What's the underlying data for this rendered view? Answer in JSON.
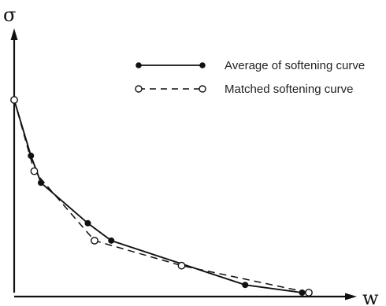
{
  "chart_data": {
    "type": "line",
    "title": "",
    "xlabel": "w",
    "ylabel": "σ",
    "xlim": [
      0,
      100
    ],
    "ylim": [
      0,
      100
    ],
    "grid": false,
    "legend_position": "top-right",
    "ticks": "none",
    "series": [
      {
        "name": "Average of softening curve",
        "style": "solid",
        "marker": "filled-circle",
        "color": "#111111",
        "x": [
          0,
          5,
          8,
          22,
          29,
          69,
          86
        ],
        "y": [
          100,
          71,
          57,
          36,
          27,
          4,
          0
        ]
      },
      {
        "name": "Matched softening curve",
        "style": "dashed",
        "marker": "open-circle",
        "color": "#111111",
        "x": [
          0,
          6,
          24,
          50,
          88
        ],
        "y": [
          100,
          63,
          27,
          14,
          0
        ]
      }
    ]
  }
}
